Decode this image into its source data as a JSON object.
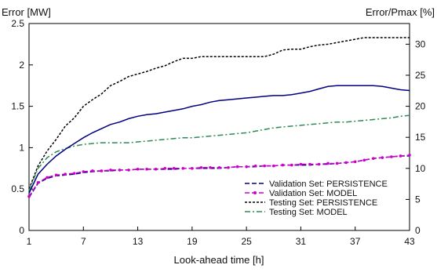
{
  "chart_data": {
    "type": "line",
    "xlabel": "Look-ahead time [h]",
    "ylabel_left": "Error [MW]",
    "ylabel_right": "Error/Pmax [%]",
    "xlim": [
      1,
      43
    ],
    "ylim_left": [
      0,
      2.5
    ],
    "ylim_right": [
      0,
      33.33
    ],
    "x_ticks": [
      1,
      7,
      13,
      19,
      25,
      31,
      37,
      43
    ],
    "y_ticks_left": [
      "0",
      "0.5",
      "1",
      "1.5",
      "2",
      "2.5"
    ],
    "y_ticks_left_values": [
      0,
      0.5,
      1,
      1.5,
      2,
      2.5
    ],
    "y_ticks_right": [
      "0",
      "5",
      "10",
      "15",
      "20",
      "25",
      "30"
    ],
    "y_ticks_right_values": [
      0,
      5,
      10,
      15,
      20,
      25,
      30
    ],
    "grid": false,
    "legend_placement": "lower-right",
    "series": [
      {
        "name": "Validation Set: PERSISTENCE",
        "color": "#000080",
        "dash": "6,3",
        "marker": "none",
        "x": [
          1,
          2,
          3,
          4,
          5,
          6,
          7,
          8,
          9,
          10,
          11,
          12,
          13,
          14,
          15,
          16,
          17,
          18,
          19,
          20,
          21,
          22,
          23,
          24,
          25,
          26,
          27,
          28,
          29,
          30,
          31,
          32,
          33,
          34,
          35,
          36,
          37,
          38,
          39,
          40,
          41,
          42,
          43
        ],
        "values": [
          0.4,
          0.57,
          0.63,
          0.66,
          0.67,
          0.68,
          0.7,
          0.71,
          0.72,
          0.72,
          0.73,
          0.73,
          0.74,
          0.74,
          0.74,
          0.74,
          0.74,
          0.75,
          0.75,
          0.75,
          0.75,
          0.75,
          0.76,
          0.77,
          0.77,
          0.77,
          0.78,
          0.78,
          0.79,
          0.79,
          0.79,
          0.79,
          0.8,
          0.8,
          0.81,
          0.82,
          0.83,
          0.85,
          0.87,
          0.88,
          0.89,
          0.9,
          0.9
        ]
      },
      {
        "name": "Validation Set: MODEL",
        "color": "#cc00cc",
        "dash": "6,3",
        "marker": "dot",
        "x": [
          1,
          2,
          3,
          4,
          5,
          6,
          7,
          8,
          9,
          10,
          11,
          12,
          13,
          14,
          15,
          16,
          17,
          18,
          19,
          20,
          21,
          22,
          23,
          24,
          25,
          26,
          27,
          28,
          29,
          30,
          31,
          32,
          33,
          34,
          35,
          36,
          37,
          38,
          39,
          40,
          41,
          42,
          43
        ],
        "values": [
          0.41,
          0.58,
          0.64,
          0.67,
          0.68,
          0.69,
          0.71,
          0.72,
          0.72,
          0.73,
          0.73,
          0.73,
          0.74,
          0.74,
          0.74,
          0.75,
          0.75,
          0.75,
          0.75,
          0.76,
          0.76,
          0.76,
          0.76,
          0.77,
          0.77,
          0.78,
          0.78,
          0.78,
          0.79,
          0.79,
          0.8,
          0.8,
          0.8,
          0.81,
          0.81,
          0.82,
          0.83,
          0.85,
          0.87,
          0.88,
          0.89,
          0.9,
          0.91
        ]
      },
      {
        "name": "Testing Set: PERSISTENCE",
        "color": "#000000",
        "dash": "3,2",
        "marker": "none",
        "x": [
          1,
          2,
          3,
          4,
          5,
          6,
          7,
          8,
          9,
          10,
          11,
          12,
          13,
          14,
          15,
          16,
          17,
          18,
          19,
          20,
          21,
          22,
          23,
          24,
          25,
          26,
          27,
          28,
          29,
          30,
          31,
          32,
          33,
          34,
          35,
          36,
          37,
          38,
          39,
          40,
          41,
          42,
          43
        ],
        "values": [
          0.5,
          0.78,
          0.96,
          1.1,
          1.26,
          1.36,
          1.5,
          1.58,
          1.65,
          1.75,
          1.8,
          1.86,
          1.89,
          1.92,
          1.96,
          1.99,
          2.04,
          2.08,
          2.08,
          2.1,
          2.1,
          2.1,
          2.1,
          2.1,
          2.1,
          2.1,
          2.1,
          2.13,
          2.18,
          2.19,
          2.19,
          2.22,
          2.24,
          2.25,
          2.27,
          2.29,
          2.31,
          2.33,
          2.33,
          2.33,
          2.33,
          2.33,
          2.33
        ]
      },
      {
        "name": "Testing Set: MODEL",
        "color": "#2e8b57",
        "dash": "7,3,2,3",
        "marker": "none",
        "x": [
          1,
          2,
          3,
          4,
          5,
          6,
          7,
          8,
          9,
          10,
          11,
          12,
          13,
          14,
          15,
          16,
          17,
          18,
          19,
          20,
          21,
          22,
          23,
          24,
          25,
          26,
          27,
          28,
          29,
          30,
          31,
          32,
          33,
          34,
          35,
          36,
          37,
          38,
          39,
          40,
          41,
          42,
          43
        ],
        "values": [
          0.48,
          0.75,
          0.88,
          0.95,
          0.99,
          1.02,
          1.04,
          1.05,
          1.06,
          1.06,
          1.06,
          1.06,
          1.07,
          1.08,
          1.09,
          1.1,
          1.11,
          1.12,
          1.12,
          1.13,
          1.14,
          1.15,
          1.16,
          1.17,
          1.18,
          1.2,
          1.22,
          1.24,
          1.25,
          1.26,
          1.27,
          1.28,
          1.29,
          1.3,
          1.31,
          1.31,
          1.32,
          1.33,
          1.34,
          1.35,
          1.36,
          1.38,
          1.39
        ]
      },
      {
        "name": "",
        "color": "#000080",
        "dash": "",
        "marker": "none",
        "x": [
          1,
          2,
          3,
          4,
          5,
          6,
          7,
          8,
          9,
          10,
          11,
          12,
          13,
          14,
          15,
          16,
          17,
          18,
          19,
          20,
          21,
          22,
          23,
          24,
          25,
          26,
          27,
          28,
          29,
          30,
          31,
          32,
          33,
          34,
          35,
          36,
          37,
          38,
          39,
          40,
          41,
          42,
          43
        ],
        "values": [
          0.45,
          0.68,
          0.8,
          0.9,
          0.98,
          1.05,
          1.12,
          1.18,
          1.23,
          1.28,
          1.31,
          1.35,
          1.38,
          1.4,
          1.41,
          1.43,
          1.45,
          1.47,
          1.5,
          1.52,
          1.55,
          1.57,
          1.58,
          1.59,
          1.6,
          1.61,
          1.62,
          1.63,
          1.63,
          1.64,
          1.66,
          1.68,
          1.71,
          1.74,
          1.75,
          1.75,
          1.75,
          1.75,
          1.75,
          1.74,
          1.72,
          1.7,
          1.69
        ]
      }
    ]
  }
}
